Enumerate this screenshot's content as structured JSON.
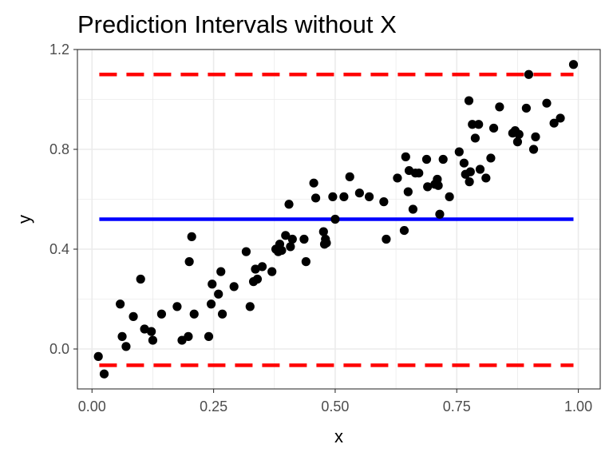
{
  "chart_data": {
    "type": "scatter",
    "title": "Prediction Intervals without X",
    "xlabel": "x",
    "ylabel": "y",
    "xlim": [
      -0.03,
      1.045
    ],
    "ylim": [
      -0.16,
      1.2
    ],
    "grid": true,
    "x_ticks": [
      0.0,
      0.25,
      0.5,
      0.75,
      1.0
    ],
    "x_tick_labels": [
      "0.00",
      "0.25",
      "0.50",
      "0.75",
      "1.00"
    ],
    "y_ticks": [
      0.0,
      0.4,
      0.8,
      1.2
    ],
    "y_tick_labels": [
      "0.0",
      "0.4",
      "0.8",
      "1.2"
    ],
    "colors": {
      "points": "#000000",
      "mean_line": "#0000ff",
      "interval_lines": "#ff0000",
      "grid": "#ebebeb",
      "panel_border": "#333333"
    },
    "lines": [
      {
        "role": "mean",
        "style": "solid",
        "x": [
          0.015,
          0.99
        ],
        "y": [
          0.52,
          0.52
        ]
      },
      {
        "role": "upper-interval",
        "style": "dashed",
        "x": [
          0.015,
          0.99
        ],
        "y": [
          1.1,
          1.1
        ]
      },
      {
        "role": "lower-interval",
        "style": "dashed",
        "x": [
          0.015,
          0.99
        ],
        "y": [
          -0.065,
          -0.065
        ]
      }
    ],
    "points": [
      {
        "x": 0.013,
        "y": -0.03
      },
      {
        "x": 0.025,
        "y": -0.1
      },
      {
        "x": 0.058,
        "y": 0.18
      },
      {
        "x": 0.062,
        "y": 0.05
      },
      {
        "x": 0.07,
        "y": 0.01
      },
      {
        "x": 0.085,
        "y": 0.13
      },
      {
        "x": 0.1,
        "y": 0.28
      },
      {
        "x": 0.108,
        "y": 0.08
      },
      {
        "x": 0.122,
        "y": 0.07
      },
      {
        "x": 0.125,
        "y": 0.035
      },
      {
        "x": 0.143,
        "y": 0.14
      },
      {
        "x": 0.175,
        "y": 0.17
      },
      {
        "x": 0.185,
        "y": 0.035
      },
      {
        "x": 0.198,
        "y": 0.05
      },
      {
        "x": 0.2,
        "y": 0.35
      },
      {
        "x": 0.205,
        "y": 0.45
      },
      {
        "x": 0.21,
        "y": 0.14
      },
      {
        "x": 0.24,
        "y": 0.05
      },
      {
        "x": 0.245,
        "y": 0.18
      },
      {
        "x": 0.247,
        "y": 0.26
      },
      {
        "x": 0.26,
        "y": 0.22
      },
      {
        "x": 0.265,
        "y": 0.31
      },
      {
        "x": 0.268,
        "y": 0.14
      },
      {
        "x": 0.292,
        "y": 0.25
      },
      {
        "x": 0.317,
        "y": 0.39
      },
      {
        "x": 0.325,
        "y": 0.17
      },
      {
        "x": 0.332,
        "y": 0.27
      },
      {
        "x": 0.336,
        "y": 0.32
      },
      {
        "x": 0.34,
        "y": 0.28
      },
      {
        "x": 0.35,
        "y": 0.33
      },
      {
        "x": 0.37,
        "y": 0.31
      },
      {
        "x": 0.378,
        "y": 0.4
      },
      {
        "x": 0.383,
        "y": 0.39
      },
      {
        "x": 0.386,
        "y": 0.42
      },
      {
        "x": 0.39,
        "y": 0.395
      },
      {
        "x": 0.398,
        "y": 0.455
      },
      {
        "x": 0.405,
        "y": 0.58
      },
      {
        "x": 0.408,
        "y": 0.41
      },
      {
        "x": 0.412,
        "y": 0.44
      },
      {
        "x": 0.436,
        "y": 0.44
      },
      {
        "x": 0.44,
        "y": 0.35
      },
      {
        "x": 0.456,
        "y": 0.665
      },
      {
        "x": 0.46,
        "y": 0.605
      },
      {
        "x": 0.476,
        "y": 0.47
      },
      {
        "x": 0.478,
        "y": 0.42
      },
      {
        "x": 0.48,
        "y": 0.44
      },
      {
        "x": 0.482,
        "y": 0.425
      },
      {
        "x": 0.495,
        "y": 0.61
      },
      {
        "x": 0.5,
        "y": 0.52
      },
      {
        "x": 0.518,
        "y": 0.61
      },
      {
        "x": 0.53,
        "y": 0.69
      },
      {
        "x": 0.55,
        "y": 0.625
      },
      {
        "x": 0.57,
        "y": 0.61
      },
      {
        "x": 0.6,
        "y": 0.59
      },
      {
        "x": 0.605,
        "y": 0.44
      },
      {
        "x": 0.628,
        "y": 0.685
      },
      {
        "x": 0.642,
        "y": 0.475
      },
      {
        "x": 0.645,
        "y": 0.77
      },
      {
        "x": 0.65,
        "y": 0.63
      },
      {
        "x": 0.652,
        "y": 0.715
      },
      {
        "x": 0.66,
        "y": 0.56
      },
      {
        "x": 0.665,
        "y": 0.705
      },
      {
        "x": 0.672,
        "y": 0.705
      },
      {
        "x": 0.688,
        "y": 0.76
      },
      {
        "x": 0.69,
        "y": 0.65
      },
      {
        "x": 0.705,
        "y": 0.66
      },
      {
        "x": 0.71,
        "y": 0.68
      },
      {
        "x": 0.712,
        "y": 0.655
      },
      {
        "x": 0.715,
        "y": 0.54
      },
      {
        "x": 0.722,
        "y": 0.76
      },
      {
        "x": 0.735,
        "y": 0.61
      },
      {
        "x": 0.755,
        "y": 0.79
      },
      {
        "x": 0.765,
        "y": 0.745
      },
      {
        "x": 0.768,
        "y": 0.7
      },
      {
        "x": 0.775,
        "y": 0.995
      },
      {
        "x": 0.776,
        "y": 0.67
      },
      {
        "x": 0.778,
        "y": 0.71
      },
      {
        "x": 0.782,
        "y": 0.9
      },
      {
        "x": 0.788,
        "y": 0.845
      },
      {
        "x": 0.795,
        "y": 0.9
      },
      {
        "x": 0.798,
        "y": 0.72
      },
      {
        "x": 0.81,
        "y": 0.685
      },
      {
        "x": 0.82,
        "y": 0.765
      },
      {
        "x": 0.826,
        "y": 0.885
      },
      {
        "x": 0.838,
        "y": 0.97
      },
      {
        "x": 0.865,
        "y": 0.865
      },
      {
        "x": 0.87,
        "y": 0.875
      },
      {
        "x": 0.875,
        "y": 0.83
      },
      {
        "x": 0.878,
        "y": 0.86
      },
      {
        "x": 0.893,
        "y": 0.965
      },
      {
        "x": 0.898,
        "y": 1.1
      },
      {
        "x": 0.908,
        "y": 0.8
      },
      {
        "x": 0.912,
        "y": 0.85
      },
      {
        "x": 0.935,
        "y": 0.985
      },
      {
        "x": 0.95,
        "y": 0.905
      },
      {
        "x": 0.963,
        "y": 0.925
      },
      {
        "x": 0.99,
        "y": 1.14
      }
    ]
  }
}
